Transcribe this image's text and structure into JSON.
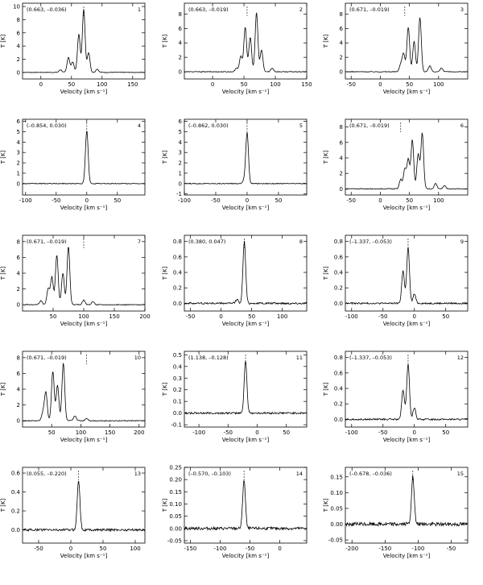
{
  "figure": {
    "xlabel": "Velocity [km s⁻¹]",
    "ylabel": "T [K]"
  },
  "chart_data": [
    {
      "type": "line",
      "panel": "1",
      "coords": "(0.663, –0.036)",
      "xticks": [
        0,
        50,
        100,
        150
      ],
      "yticks": [
        0,
        2,
        4,
        6,
        8,
        10
      ],
      "xlim": [
        -30,
        170
      ],
      "ylim": [
        -1,
        10.5
      ],
      "marker_x": 70,
      "peaks": [
        [
          32,
          0.4
        ],
        [
          45,
          2.3
        ],
        [
          52,
          1.6
        ],
        [
          62,
          5.8
        ],
        [
          70,
          9.6
        ],
        [
          78,
          3.0
        ],
        [
          92,
          0.5
        ]
      ],
      "noise": 0.05
    },
    {
      "type": "line",
      "panel": "2",
      "coords": "(0.663, –0.019)",
      "xticks": [
        0,
        50,
        100,
        150
      ],
      "yticks": [
        0,
        2,
        4,
        6,
        8
      ],
      "xlim": [
        -45,
        150
      ],
      "ylim": [
        -1,
        9.5
      ],
      "marker_x": 55,
      "peaks": [
        [
          38,
          0.5
        ],
        [
          45,
          2.2
        ],
        [
          52,
          6.2
        ],
        [
          60,
          4.8
        ],
        [
          70,
          8.2
        ],
        [
          78,
          3.0
        ],
        [
          95,
          0.5
        ]
      ],
      "noise": 0.05
    },
    {
      "type": "line",
      "panel": "3",
      "coords": "(0.671, –0.019)",
      "xticks": [
        -50,
        0,
        50,
        100
      ],
      "yticks": [
        0,
        2,
        4,
        6,
        8
      ],
      "xlim": [
        -60,
        150
      ],
      "ylim": [
        -1,
        9.5
      ],
      "marker_x": 42,
      "peaks": [
        [
          35,
          1.0
        ],
        [
          40,
          2.5
        ],
        [
          48,
          6.2
        ],
        [
          58,
          4.2
        ],
        [
          68,
          7.5
        ],
        [
          85,
          0.8
        ],
        [
          105,
          0.5
        ]
      ],
      "noise": 0.05
    },
    {
      "type": "line",
      "panel": "4",
      "coords": "(–0.854, 0.030)",
      "xticks": [
        -100,
        -50,
        0,
        50
      ],
      "yticks": [
        0,
        1,
        2,
        3,
        4,
        5,
        6
      ],
      "xlim": [
        -105,
        95
      ],
      "ylim": [
        -1.1,
        6.2
      ],
      "marker_x": 0,
      "peaks": [
        [
          0,
          5.1
        ]
      ],
      "noise": 0.04
    },
    {
      "type": "line",
      "panel": "5",
      "coords": "(–0.862, 0.030)",
      "xticks": [
        -100,
        -50,
        0,
        50
      ],
      "yticks": [
        -1,
        0,
        1,
        2,
        3,
        4,
        5,
        6
      ],
      "xlim": [
        -100,
        95
      ],
      "ylim": [
        -1.1,
        6.2
      ],
      "marker_x": 0,
      "peaks": [
        [
          0,
          4.9
        ],
        [
          -5,
          0.3
        ]
      ],
      "noise": 0.04
    },
    {
      "type": "line",
      "panel": "6",
      "coords": "(0.671, –0.019)",
      "xticks": [
        -50,
        0,
        50,
        100
      ],
      "yticks": [
        0,
        2,
        4,
        6,
        8
      ],
      "xlim": [
        -60,
        150
      ],
      "ylim": [
        -0.8,
        9
      ],
      "marker_x": 35,
      "peaks": [
        [
          35,
          1.2
        ],
        [
          42,
          2.5
        ],
        [
          48,
          3.8
        ],
        [
          55,
          6.3
        ],
        [
          65,
          4.5
        ],
        [
          72,
          7.2
        ],
        [
          95,
          0.7
        ],
        [
          110,
          0.4
        ]
      ],
      "noise": 0.05
    },
    {
      "type": "line",
      "panel": "7",
      "coords": "(0.671, –0.019)",
      "xticks": [
        50,
        100,
        150,
        200
      ],
      "yticks": [
        0,
        2,
        4,
        6,
        8
      ],
      "xlim": [
        0,
        200
      ],
      "ylim": [
        -0.8,
        8.8
      ],
      "marker_x": 100,
      "peaks": [
        [
          30,
          0.5
        ],
        [
          42,
          2.0
        ],
        [
          48,
          3.5
        ],
        [
          56,
          6.3
        ],
        [
          66,
          4.0
        ],
        [
          75,
          7.4
        ],
        [
          100,
          0.6
        ],
        [
          115,
          0.4
        ]
      ],
      "noise": 0.05
    },
    {
      "type": "line",
      "panel": "8",
      "coords": "(0.380, 0.047)",
      "xticks": [
        -50,
        0,
        50,
        100
      ],
      "yticks": [
        0.0,
        0.2,
        0.4,
        0.6,
        0.8
      ],
      "xlim": [
        -60,
        140
      ],
      "ylim": [
        -0.1,
        0.88
      ],
      "marker_x": 38,
      "peaks": [
        [
          38,
          0.8
        ],
        [
          26,
          0.05
        ]
      ],
      "noise": 0.012
    },
    {
      "type": "line",
      "panel": "9",
      "coords": "(–1.337, –0.053)",
      "xticks": [
        -100,
        -50,
        0,
        50
      ],
      "yticks": [
        0.0,
        0.2,
        0.4,
        0.6,
        0.8
      ],
      "xlim": [
        -110,
        85
      ],
      "ylim": [
        -0.1,
        0.88
      ],
      "marker_x": -10,
      "peaks": [
        [
          -18,
          0.42
        ],
        [
          -10,
          0.72
        ],
        [
          0,
          0.12
        ]
      ],
      "noise": 0.01
    },
    {
      "type": "line",
      "panel": "10",
      "coords": "(0.671, –0.019)",
      "xticks": [
        50,
        100,
        150,
        200
      ],
      "yticks": [
        0,
        2,
        4,
        6,
        8
      ],
      "xlim": [
        0,
        210
      ],
      "ylim": [
        -0.8,
        8.8
      ],
      "marker_x": 110,
      "peaks": [
        [
          35,
          1.0
        ],
        [
          40,
          3.6
        ],
        [
          52,
          6.3
        ],
        [
          60,
          4.5
        ],
        [
          70,
          7.3
        ],
        [
          90,
          0.6
        ],
        [
          110,
          0.3
        ]
      ],
      "noise": 0.05
    },
    {
      "type": "line",
      "panel": "11",
      "coords": "(1.138, –0.128)",
      "xticks": [
        -100,
        -50,
        0,
        50
      ],
      "yticks": [
        -0.1,
        0.0,
        0.1,
        0.2,
        0.3,
        0.4,
        0.5
      ],
      "xlim": [
        -125,
        85
      ],
      "ylim": [
        -0.12,
        0.53
      ],
      "marker_x": -20,
      "peaks": [
        [
          -20,
          0.45
        ]
      ],
      "noise": 0.008
    },
    {
      "type": "line",
      "panel": "12",
      "coords": "(–1.337, –0.053)",
      "xticks": [
        -100,
        -50,
        0,
        50
      ],
      "yticks": [
        0.0,
        0.2,
        0.4,
        0.6,
        0.8
      ],
      "xlim": [
        -110,
        85
      ],
      "ylim": [
        -0.1,
        0.88
      ],
      "marker_x": -10,
      "peaks": [
        [
          -18,
          0.38
        ],
        [
          -10,
          0.72
        ],
        [
          0,
          0.15
        ]
      ],
      "noise": 0.01
    },
    {
      "type": "line",
      "panel": "13",
      "coords": "(0.055, –0.220)",
      "xticks": [
        -50,
        0,
        50,
        100
      ],
      "yticks": [
        0.0,
        0.2,
        0.4,
        0.6
      ],
      "xlim": [
        -75,
        115
      ],
      "ylim": [
        -0.14,
        0.66
      ],
      "marker_x": 12,
      "peaks": [
        [
          12,
          0.53
        ]
      ],
      "noise": 0.012
    },
    {
      "type": "line",
      "panel": "14",
      "coords": "(–0.570, –0.103)",
      "xticks": [
        -150,
        -100,
        -50,
        0
      ],
      "yticks": [
        -0.05,
        0.0,
        0.05,
        0.1,
        0.15,
        0.2,
        0.25
      ],
      "xlim": [
        -160,
        45
      ],
      "ylim": [
        -0.06,
        0.25
      ],
      "marker_x": -60,
      "peaks": [
        [
          -60,
          0.2
        ]
      ],
      "noise": 0.006
    },
    {
      "type": "line",
      "panel": "15",
      "coords": "(–0.678, –0.036)",
      "xticks": [
        -200,
        -150,
        -100,
        -50
      ],
      "yticks": [
        -0.05,
        0.0,
        0.05,
        0.1,
        0.15
      ],
      "xlim": [
        -210,
        -25
      ],
      "ylim": [
        -0.06,
        0.18
      ],
      "marker_x": -108,
      "peaks": [
        [
          -108,
          0.15
        ]
      ],
      "noise": 0.006
    }
  ]
}
